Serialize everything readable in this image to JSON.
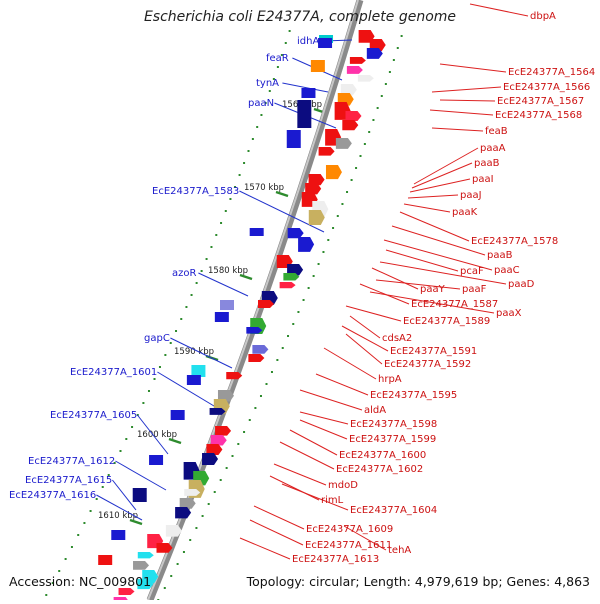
{
  "title": "Escherichia coli E24377A, complete genome",
  "footer": {
    "accession": "Accession: NC_009801",
    "summary": "Topology: circular; Length: 4,979,619 bp; Genes: 4,863"
  },
  "colors": {
    "left_label": "#1a1acc",
    "right_label": "#cc1111",
    "left_line": "#2233cc",
    "right_line": "#dd2222",
    "backbone": "#8a8a8a",
    "tick": "#2e8b2e"
  },
  "kbp_ticks": [
    "1560 kbp",
    "1570 kbp",
    "1580 kbp",
    "1590 kbp",
    "1600 kbp",
    "1610 kbp"
  ],
  "left_genes": [
    "idhA",
    "feaR",
    "tynA",
    "paaN",
    "EcE24377A_1583",
    "azoR",
    "gapC",
    "EcE24377A_1601",
    "EcE24377A_1605",
    "EcE24377A_1612",
    "EcE24377A_1615",
    "EcE24377A_1616"
  ],
  "right_genes": [
    "dbpA",
    "EcE24377A_1564",
    "EcE24377A_1566",
    "EcE24377A_1567",
    "EcE24377A_1568",
    "feaB",
    "paaA",
    "paaB",
    "paaI",
    "paaJ",
    "paaK",
    "EcE24377A_1578",
    "paaB",
    "paaC",
    "pcaF",
    "paaD",
    "paaY",
    "paaF",
    "EcE24377A_1587",
    "paaX",
    "EcE24377A_1589",
    "cdsA2",
    "EcE24377A_1591",
    "EcE24377A_1592",
    "hrpA",
    "EcE24377A_1595",
    "aldA",
    "EcE24377A_1598",
    "EcE24377A_1599",
    "EcE24377A_1600",
    "EcE24377A_1602",
    "mdoD",
    "rimL",
    "EcE24377A_1604",
    "EcE24377A_1609",
    "EcE24377A_1611",
    "tehA",
    "EcE24377A_1613"
  ]
}
